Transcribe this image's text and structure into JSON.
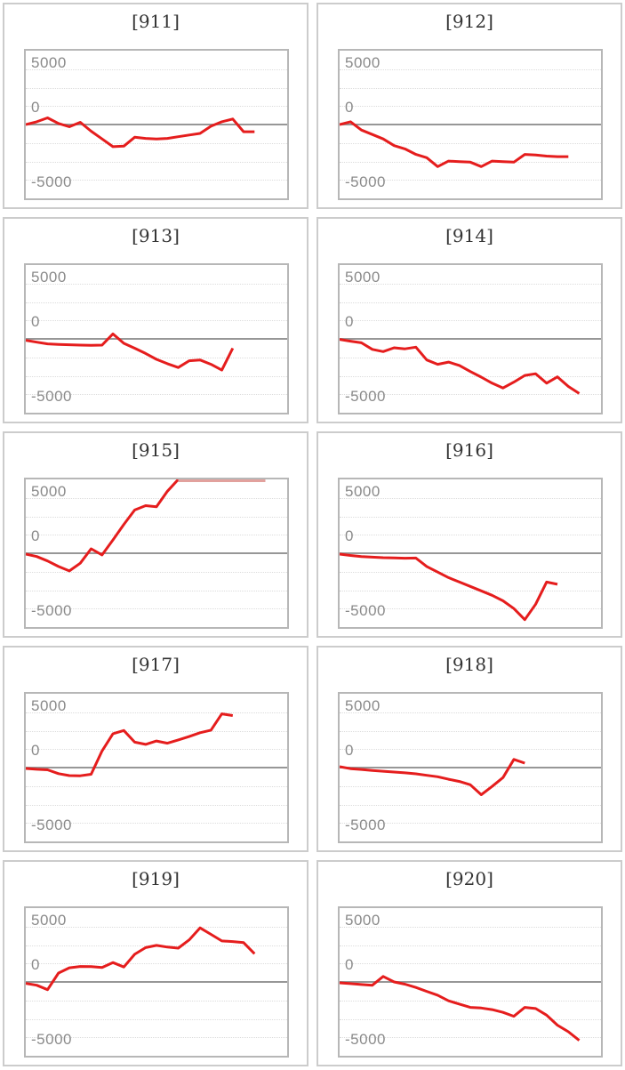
{
  "page": {
    "description": "Grid of 10 slump line charts for machine numbers 911-920"
  },
  "style": {
    "line_color": "#e51d1d",
    "clipped_line_color": "#e2a19d",
    "zero_line_color": "#979797",
    "grid_color": "#dcdcdc",
    "plot_border_color": "#b7b7b7",
    "tile_border_color": "#cccccc",
    "title_color": "#333333",
    "tick_label_color": "#8a8a8a",
    "page_bg": "#ffffff"
  },
  "axis": {
    "tick_labels": [
      "5000",
      "0",
      "-5000"
    ],
    "tick_values": [
      5000,
      0,
      -5000
    ],
    "gridline_values": [
      5000,
      3333,
      1667,
      -1667,
      -3333,
      -5000
    ],
    "zero_value": 0,
    "ylim": [
      -6667,
      6667
    ],
    "grid_style": "dotted",
    "legend": "none"
  },
  "chart_data": [
    {
      "type": "line",
      "title": "[911]",
      "x_count": 25,
      "ylim": [
        -6667,
        6667
      ],
      "yticks": [
        5000,
        0,
        -5000
      ],
      "values": [
        0,
        250,
        600,
        100,
        -200,
        200,
        -600,
        -1300,
        -2000,
        -1950,
        -1150,
        -1250,
        -1300,
        -1250,
        -1100,
        -950,
        -800,
        -150,
        250,
        500,
        -650,
        -650
      ]
    },
    {
      "type": "line",
      "title": "[912]",
      "x_count": 25,
      "ylim": [
        -6667,
        6667
      ],
      "yticks": [
        5000,
        0,
        -5000
      ],
      "values": [
        0,
        250,
        -500,
        -900,
        -1300,
        -1900,
        -2200,
        -2700,
        -3000,
        -3800,
        -3300,
        -3350,
        -3400,
        -3800,
        -3300,
        -3350,
        -3400,
        -2700,
        -2750,
        -2850,
        -2900,
        -2900
      ]
    },
    {
      "type": "line",
      "title": "[913]",
      "x_count": 25,
      "ylim": [
        -6667,
        6667
      ],
      "yticks": [
        5000,
        0,
        -5000
      ],
      "values": [
        -130,
        -300,
        -450,
        -500,
        -530,
        -560,
        -580,
        -560,
        450,
        -400,
        -840,
        -1320,
        -1850,
        -2240,
        -2590,
        -1980,
        -1900,
        -2300,
        -2820,
        -840
      ]
    },
    {
      "type": "line",
      "title": "[914]",
      "x_count": 25,
      "ylim": [
        -6667,
        6667
      ],
      "yticks": [
        5000,
        0,
        -5000
      ],
      "values": [
        -50,
        -210,
        -350,
        -950,
        -1150,
        -800,
        -900,
        -750,
        -1900,
        -2300,
        -2100,
        -2400,
        -2950,
        -3450,
        -4000,
        -4430,
        -3900,
        -3300,
        -3150,
        -4000,
        -3430,
        -4300,
        -4930
      ]
    },
    {
      "type": "line",
      "title": "[915]",
      "x_count": 25,
      "ylim": [
        -6667,
        6667
      ],
      "yticks": [
        5000,
        0,
        -5000
      ],
      "values": [
        -80,
        -300,
        -700,
        -1200,
        -1600,
        -900,
        400,
        -150,
        1200,
        2600,
        3900,
        4300,
        4200,
        5600,
        7200,
        7200,
        7200,
        7200,
        7200,
        7200,
        7200,
        7200,
        7200
      ]
    },
    {
      "type": "line",
      "title": "[916]",
      "x_count": 25,
      "ylim": [
        -6667,
        6667
      ],
      "yticks": [
        5000,
        0,
        -5000
      ],
      "values": [
        -80,
        -200,
        -300,
        -350,
        -400,
        -420,
        -450,
        -430,
        -1200,
        -1700,
        -2200,
        -2600,
        -3000,
        -3400,
        -3800,
        -4300,
        -5000,
        -6000,
        -4600,
        -2600,
        -2800
      ]
    },
    {
      "type": "line",
      "title": "[917]",
      "x_count": 25,
      "ylim": [
        -6667,
        6667
      ],
      "yticks": [
        5000,
        0,
        -5000
      ],
      "values": [
        -80,
        -150,
        -200,
        -550,
        -720,
        -740,
        -600,
        1500,
        3050,
        3350,
        2300,
        2100,
        2400,
        2200,
        2500,
        2800,
        3150,
        3380,
        4850,
        4700
      ]
    },
    {
      "type": "line",
      "title": "[918]",
      "x_count": 25,
      "ylim": [
        -6667,
        6667
      ],
      "yticks": [
        5000,
        0,
        -5000
      ],
      "values": [
        80,
        -100,
        -170,
        -260,
        -330,
        -400,
        -470,
        -560,
        -700,
        -830,
        -1050,
        -1250,
        -1550,
        -2450,
        -1700,
        -900,
        740,
        400
      ]
    },
    {
      "type": "line",
      "title": "[919]",
      "x_count": 25,
      "ylim": [
        -6667,
        6667
      ],
      "yticks": [
        5000,
        0,
        -5000
      ],
      "values": [
        -130,
        -300,
        -700,
        800,
        1280,
        1400,
        1380,
        1300,
        1750,
        1350,
        2500,
        3100,
        3300,
        3150,
        3050,
        3800,
        4880,
        4300,
        3700,
        3650,
        3550,
        2550
      ]
    },
    {
      "type": "line",
      "title": "[920]",
      "x_count": 25,
      "ylim": [
        -6667,
        6667
      ],
      "yticks": [
        5000,
        0,
        -5000
      ],
      "values": [
        -80,
        -150,
        -230,
        -300,
        500,
        0,
        -200,
        -500,
        -850,
        -1200,
        -1700,
        -2000,
        -2300,
        -2350,
        -2500,
        -2750,
        -3100,
        -2300,
        -2400,
        -3000,
        -3900,
        -4500,
        -5280
      ]
    }
  ]
}
